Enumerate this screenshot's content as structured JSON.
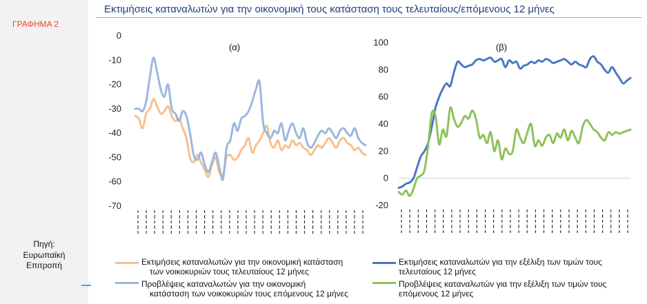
{
  "sidebar": {
    "label": "ΓΡΑΦΗΜΑ 2",
    "source_lines": [
      "Πηγή:",
      "Ευρωπαϊκή",
      "Επιτροπή"
    ]
  },
  "header": {
    "title": "Εκτιμήσεις καταναλωτών για την οικονομική τους κατάσταση τους τελευταίους/επόμενους 12 μήνες"
  },
  "colors": {
    "light_orange": "#f7c08c",
    "light_blue": "#9bb7e0",
    "dark_blue": "#4a78c2",
    "green": "#8ec15a",
    "title": "#1f3f7a",
    "sidebar_red": "#e8442a"
  },
  "chart_data": [
    {
      "type": "line",
      "panel_label": "(α)",
      "ylim": [
        -70,
        0
      ],
      "yticks": [
        0,
        -10,
        -20,
        -30,
        -40,
        -50,
        -60,
        -70
      ],
      "x_tick_count": 28,
      "x_tick_labels_legible": false,
      "series": [
        {
          "name": "Εκτιμήσεις καταναλωτών για την οικονομική κατάσταση των νοικοκυριών τους τελευταίους 12 μήνες",
          "color": "#f7c08c",
          "values": [
            -33,
            -34,
            -38,
            -32,
            -30,
            -26,
            -29,
            -32,
            -31,
            -29,
            -33,
            -35,
            -34,
            -38,
            -42,
            -50,
            -52,
            -49,
            -52,
            -55,
            -58,
            -53,
            -50,
            -56,
            -57,
            -50,
            -49,
            -51,
            -50,
            -47,
            -45,
            -42,
            -48,
            -45,
            -43,
            -40,
            -37,
            -44,
            -46,
            -43,
            -47,
            -45,
            -46,
            -43,
            -45,
            -44,
            -46,
            -47,
            -49,
            -47,
            -45,
            -46,
            -44,
            -42,
            -44,
            -46,
            -43,
            -42,
            -44,
            -45,
            -47,
            -46,
            -48,
            -49
          ]
        },
        {
          "name": "Προβλέψεις καταναλωτών για την οικονομική κατάσταση των νοικοκυριών τους επόμενους 12 μήνες",
          "color": "#9bb7e0",
          "values": [
            -30,
            -30,
            -31,
            -27,
            -17,
            -9,
            -15,
            -22,
            -25,
            -20,
            -30,
            -32,
            -35,
            -31,
            -33,
            -40,
            -49,
            -51,
            -48,
            -53,
            -56,
            -52,
            -48,
            -54,
            -59,
            -46,
            -43,
            -36,
            -39,
            -34,
            -33,
            -31,
            -27,
            -22,
            -19,
            -36,
            -40,
            -42,
            -39,
            -40,
            -36,
            -43,
            -39,
            -36,
            -40,
            -42,
            -38,
            -44,
            -46,
            -44,
            -41,
            -39,
            -40,
            -38,
            -40,
            -42,
            -39,
            -38,
            -40,
            -41,
            -38,
            -42,
            -44,
            -45
          ]
        }
      ]
    },
    {
      "type": "line",
      "panel_label": "(β)",
      "ylim": [
        -20,
        100
      ],
      "yticks": [
        100,
        80,
        60,
        40,
        20,
        0,
        -20
      ],
      "x_tick_count": 28,
      "x_tick_labels_legible": false,
      "series": [
        {
          "name": "Εκτιμήσεις καταναλωτών για την εξέλιξη των τιμών τους τελευταίους 12 μήνες",
          "color": "#4a78c2",
          "values": [
            -7,
            -6,
            -4,
            -3,
            0,
            8,
            16,
            20,
            26,
            38,
            52,
            60,
            66,
            70,
            68,
            78,
            86,
            84,
            82,
            83,
            84,
            87,
            88,
            87,
            88,
            89,
            86,
            87,
            88,
            82,
            87,
            85,
            86,
            81,
            83,
            84,
            86,
            85,
            87,
            86,
            88,
            87,
            85,
            86,
            87,
            88,
            86,
            84,
            86,
            84,
            83,
            82,
            88,
            90,
            86,
            84,
            80,
            78,
            82,
            78,
            74,
            70,
            72,
            74
          ]
        },
        {
          "name": "Προβλέψεις καταναλωτών για την εξέλιξη των τιμών τους επόμενους 12 μήνες",
          "color": "#8ec15a",
          "values": [
            -10,
            -12,
            -9,
            -13,
            -8,
            0,
            2,
            6,
            24,
            48,
            46,
            25,
            36,
            31,
            52,
            44,
            38,
            41,
            46,
            44,
            50,
            44,
            30,
            32,
            26,
            34,
            20,
            28,
            14,
            22,
            18,
            20,
            36,
            30,
            26,
            34,
            40,
            24,
            28,
            24,
            30,
            32,
            26,
            33,
            30,
            36,
            28,
            35,
            30,
            26,
            38,
            43,
            40,
            36,
            34,
            30,
            28,
            34,
            32,
            34,
            33,
            34,
            35,
            36
          ]
        }
      ]
    }
  ],
  "legend": [
    {
      "key": "a_last",
      "lines": [
        "Εκτιμήσεις καταναλωτών για την οικονομική κατάσταση",
        "των νοικοκυριών τους τελευταίους 12 μήνες"
      ]
    },
    {
      "key": "a_next",
      "lines": [
        "Προβλέψεις καταναλωτών για την οικονομική",
        "κατάσταση των νοικοκυριών τους επόμενους 12 μήνες"
      ]
    },
    {
      "key": "b_last",
      "lines": [
        "Εκτιμήσεις καταναλωτών για την εξέλιξη των τιμών τους",
        "τελευταίους 12 μήνες"
      ]
    },
    {
      "key": "b_next",
      "lines": [
        "Προβλέψεις καταναλωτών για την εξέλιξη των τιμών τους",
        "επόμενους 12 μήνες"
      ]
    }
  ]
}
